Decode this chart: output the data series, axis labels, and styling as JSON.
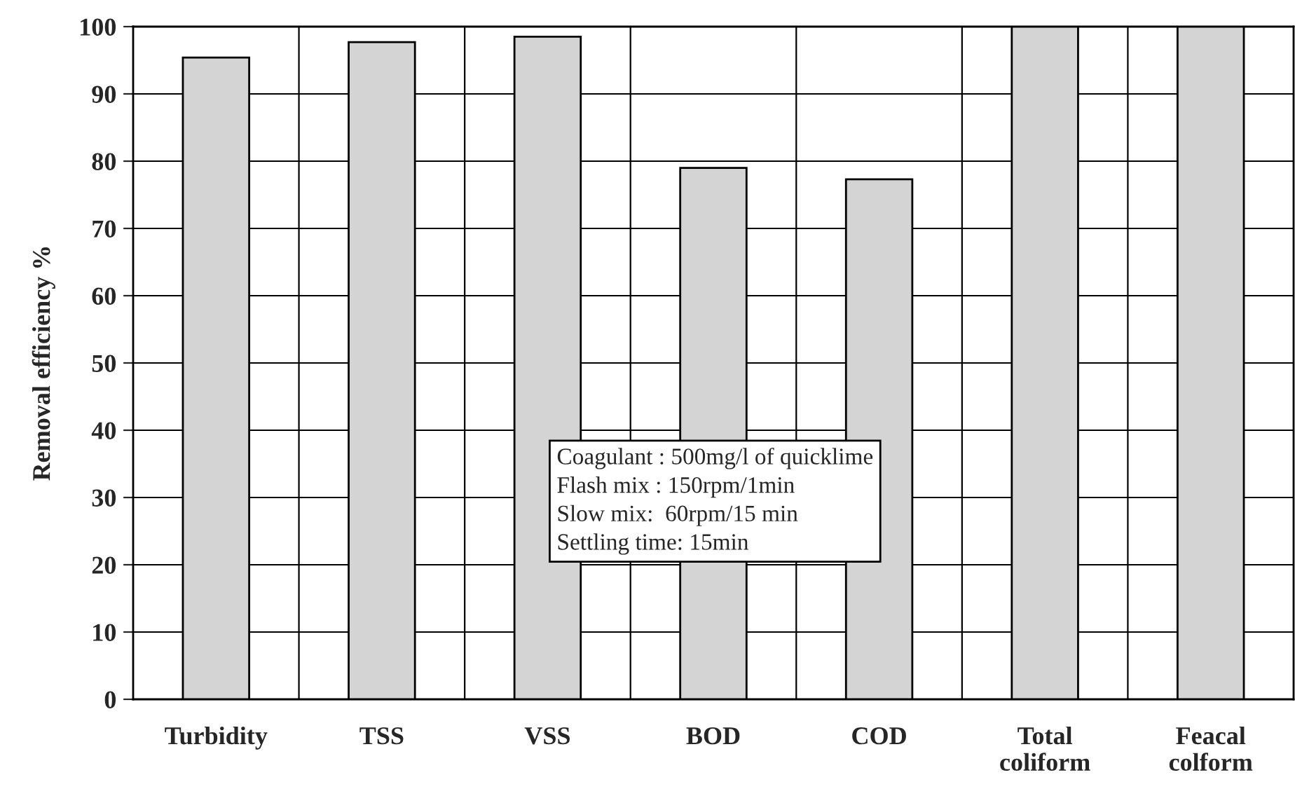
{
  "chart_data": {
    "type": "bar",
    "ylabel": "Removal efficiency %",
    "categories": [
      "Turbidity",
      "TSS",
      "VSS",
      "BOD",
      "COD",
      "Total\ncoliform",
      "Feacal\ncolform"
    ],
    "values": [
      95.4,
      97.7,
      98.5,
      79.0,
      77.3,
      100,
      100
    ],
    "color": "#d4d4d4",
    "ylim": [
      0,
      100
    ],
    "yticks": [
      0,
      10,
      20,
      30,
      40,
      50,
      60,
      70,
      80,
      90,
      100
    ],
    "grid": true,
    "annotations": [
      "Coagulant : 500mg/l of quicklime\nFlash mix : 150rpm/1min\nSlow mix:  60rpm/15 min\nSettling time: 15min"
    ]
  }
}
